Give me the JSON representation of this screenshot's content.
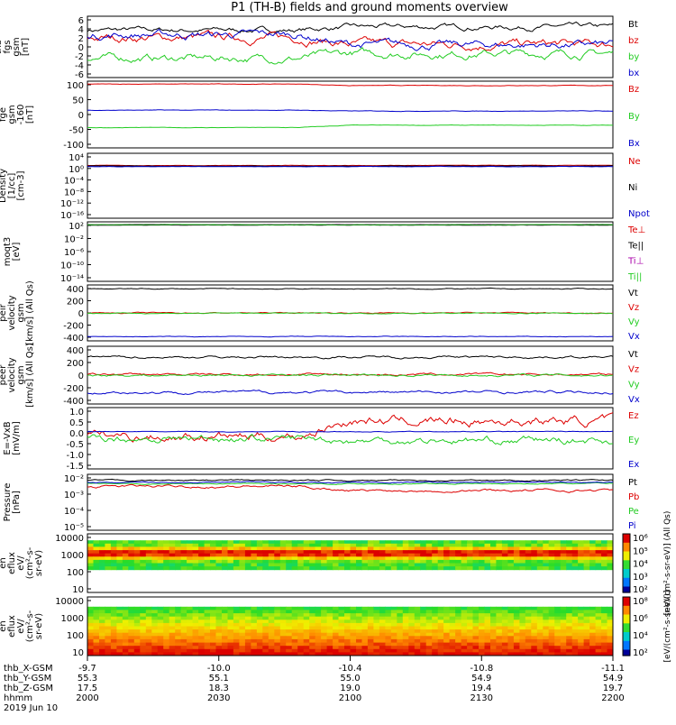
{
  "title": "P1 (TH-B) fields and ground moments overview",
  "footer": {
    "rows": [
      {
        "label": "thb_X-GSM",
        "values": [
          "-9.7",
          "-10.0",
          "-10.4",
          "-10.8",
          "-11.1"
        ]
      },
      {
        "label": "thb_Y-GSM",
        "values": [
          "55.3",
          "55.1",
          "55.0",
          "54.9",
          "54.9"
        ]
      },
      {
        "label": "thb_Z-GSM",
        "values": [
          "17.5",
          "18.3",
          "19.0",
          "19.4",
          "19.7"
        ]
      },
      {
        "label": "hhmm",
        "values": [
          "2000",
          "2030",
          "2100",
          "2130",
          "2200"
        ]
      }
    ],
    "date": "2019 Jun 10"
  },
  "colors": {
    "black": "#000000",
    "red": "#dd0000",
    "green": "#22cc22",
    "blue": "#0000cc",
    "purple": "#aa00aa"
  },
  "chart_data": [
    {
      "type": "line",
      "ylabel": [
        "thb",
        "fgs",
        "gsm",
        "[nT]"
      ],
      "yticks": [
        "6",
        "4",
        "2",
        "0",
        "-2",
        "-4",
        "-6"
      ],
      "ylim": [
        -6,
        6
      ],
      "legend": [
        "Bt",
        "bz",
        "by",
        "bx"
      ],
      "series": [
        {
          "name": "Bt",
          "mean": 3.3,
          "shift": 0.6,
          "noise": 0.6
        },
        {
          "name": "bz",
          "mean": 1.8,
          "shift": -1.3,
          "noise": 1.0
        },
        {
          "name": "by",
          "mean": -2.2,
          "shift": 0.9,
          "noise": 0.9
        },
        {
          "name": "bx",
          "mean": 2.4,
          "shift": -2.0,
          "noise": 0.9
        }
      ]
    },
    {
      "type": "line",
      "ylabel": [
        "thb",
        "fge",
        "gsm",
        "-160",
        "[nT]"
      ],
      "yticks": [
        "100",
        "50",
        "0",
        "-50",
        "-100"
      ],
      "ylim": [
        -125,
        105
      ],
      "legend": [
        "Bz",
        "By",
        "Bx"
      ],
      "series": [
        {
          "name": "Bz",
          "mean": 95,
          "shift": -5,
          "noise": 1
        },
        {
          "name": "By",
          "mean": -55,
          "shift": 8,
          "noise": 1
        },
        {
          "name": "Bx",
          "mean": 5,
          "shift": -3,
          "noise": 1
        }
      ]
    },
    {
      "type": "line",
      "ylabel": [
        "Density",
        "[1/cc]",
        "[cm-3]"
      ],
      "yticks": [
        "10⁴",
        "10⁰",
        "10⁻⁴",
        "10⁻⁸",
        "10⁻¹²",
        "10⁻¹⁶"
      ],
      "ylim": [
        -18,
        5
      ],
      "legend": [
        "Ne",
        "Ni",
        "Npot"
      ],
      "series": [
        {
          "name": "Ne",
          "mean": 0.7,
          "shift": 0,
          "noise": 0.08
        },
        {
          "name": "Ni",
          "mean": 0.5,
          "shift": 0,
          "noise": 0.08
        },
        {
          "name": "Npot",
          "mean": 0.3,
          "shift": 0,
          "noise": 0.08
        }
      ]
    },
    {
      "type": "line",
      "ylabel": [
        "moqt3",
        "[eV]"
      ],
      "yticks": [
        "10²",
        "10⁻²",
        "10⁻⁶",
        "10⁻¹⁰",
        "10⁻¹⁴"
      ],
      "ylim": [
        -16,
        4
      ],
      "legend": [
        "Te⊥",
        "Te||",
        "Ti⊥",
        "Ti||"
      ],
      "series": [
        {
          "name": "Te⊥",
          "mean": 3.0,
          "shift": 0,
          "noise": 0.05
        },
        {
          "name": "Te||",
          "mean": 2.9,
          "shift": 0,
          "noise": 0.05
        },
        {
          "name": "Ti⊥",
          "mean": 3.1,
          "shift": 0,
          "noise": 0.05
        },
        {
          "name": "Ti||",
          "mean": 3.05,
          "shift": 0,
          "noise": 0.05
        }
      ]
    },
    {
      "type": "line",
      "ylabel": [
        "thb",
        "peir",
        "velocity",
        "gsm",
        "[km/s] (All Qs)"
      ],
      "yticks": [
        "400",
        "200",
        "0",
        "-200",
        "-400"
      ],
      "ylim": [
        -430,
        430
      ],
      "legend": [
        "Vt",
        "Vz",
        "Vy",
        "Vx"
      ],
      "series": [
        {
          "name": "Vt",
          "mean": 370,
          "shift": 0,
          "noise": 8
        },
        {
          "name": "Vz",
          "mean": 0,
          "shift": 0,
          "noise": 10
        },
        {
          "name": "Vy",
          "mean": -5,
          "shift": 0,
          "noise": 8
        },
        {
          "name": "Vx",
          "mean": -365,
          "shift": 0,
          "noise": 6
        }
      ]
    },
    {
      "type": "line",
      "ylabel": [
        "thb",
        "peer",
        "velocity",
        "gsm",
        "[km/s] (All Qs)"
      ],
      "yticks": [
        "400",
        "200",
        "0",
        "-200",
        "-400"
      ],
      "ylim": [
        -430,
        430
      ],
      "legend": [
        "Vt",
        "Vz",
        "Vy",
        "Vx"
      ],
      "series": [
        {
          "name": "Vt",
          "mean": 270,
          "shift": 0,
          "noise": 20
        },
        {
          "name": "Vz",
          "mean": 10,
          "shift": 0,
          "noise": 20
        },
        {
          "name": "Vy",
          "mean": 0,
          "shift": 0,
          "noise": 20
        },
        {
          "name": "Vx",
          "mean": -255,
          "shift": 0,
          "noise": 25
        }
      ]
    },
    {
      "type": "line",
      "ylabel": [
        "E=-VxB",
        "[mV/m]"
      ],
      "yticks": [
        "1.0",
        "0.5",
        "0.0",
        "-0.5",
        "-1.0",
        "-1.5"
      ],
      "ylim": [
        -1.7,
        1.1
      ],
      "legend": [
        "Ez",
        "Ey",
        "Ex"
      ],
      "series": [
        {
          "name": "Ez",
          "mean": -0.2,
          "shift": 0.7,
          "noise": 0.25
        },
        {
          "name": "Ey",
          "mean": -0.3,
          "shift": -0.1,
          "noise": 0.2
        },
        {
          "name": "Ex",
          "mean": 0.0,
          "shift": 0,
          "noise": 0.02
        }
      ]
    },
    {
      "type": "line",
      "ylabel": [
        "Pressure",
        "[nPa]"
      ],
      "yticks": [
        "10⁻²",
        "10⁻³",
        "10⁻⁴",
        "10⁻⁵"
      ],
      "ylim": [
        -5.7,
        -1.5
      ],
      "legend": [
        "Pt",
        "Pb",
        "Pe",
        "Pi"
      ],
      "series": [
        {
          "name": "Pt",
          "mean": -1.95,
          "shift": 0,
          "noise": 0.06
        },
        {
          "name": "Pb",
          "mean": -2.4,
          "shift": -0.3,
          "noise": 0.12
        },
        {
          "name": "Pe",
          "mean": -2.2,
          "shift": 0,
          "noise": 0.05
        },
        {
          "name": "Pi",
          "mean": -2.1,
          "shift": 0,
          "noise": 0.05
        }
      ]
    },
    {
      "type": "heatmap",
      "ylabel": [
        "thb",
        "peir",
        "en",
        "eflux",
        "eV/",
        "(cm²-s-",
        "sr-eV)"
      ],
      "yticks": [
        "10000",
        "1000",
        "100",
        "10"
      ]
    },
    {
      "type": "heatmap",
      "ylabel": [
        "thb",
        "peer",
        "en",
        "eflux",
        "eV/",
        "(cm²-s-",
        "sr-eV)"
      ],
      "yticks": [
        "10000",
        "1000",
        "100",
        "10"
      ]
    }
  ],
  "colorbars": [
    {
      "ticks": [
        "10⁶",
        "10⁵",
        "10⁴",
        "10³",
        "10²"
      ],
      "label": "[eV/(cm²-s-sr-eV)] (All Qs)"
    },
    {
      "ticks": [
        "10⁸",
        "10⁶",
        "10⁴",
        "10²"
      ],
      "label": "[eV/(cm²-s-sr-eV)]"
    }
  ]
}
